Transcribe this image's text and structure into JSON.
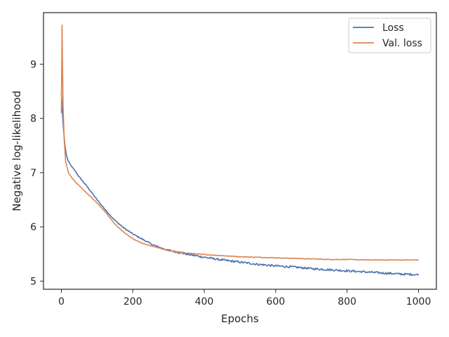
{
  "chart_data": {
    "type": "line",
    "xlabel": "Epochs",
    "ylabel": "Negative log-likelihood",
    "xlim": [
      -50,
      1050
    ],
    "ylim": [
      4.85,
      9.95
    ],
    "xticks": [
      0,
      200,
      400,
      600,
      800,
      1000
    ],
    "yticks": [
      5,
      6,
      7,
      8,
      9
    ],
    "grid": false,
    "legend_position": "top-right",
    "series": [
      {
        "name": "Loss",
        "color": "#4c72b0",
        "noise": 0.012,
        "points": [
          [
            0,
            8.48
          ],
          [
            3,
            8.1
          ],
          [
            6,
            7.8
          ],
          [
            10,
            7.5
          ],
          [
            15,
            7.3
          ],
          [
            20,
            7.2
          ],
          [
            30,
            7.1
          ],
          [
            40,
            7.02
          ],
          [
            50,
            6.92
          ],
          [
            75,
            6.72
          ],
          [
            100,
            6.5
          ],
          [
            125,
            6.3
          ],
          [
            150,
            6.12
          ],
          [
            175,
            5.98
          ],
          [
            200,
            5.87
          ],
          [
            225,
            5.78
          ],
          [
            250,
            5.69
          ],
          [
            275,
            5.62
          ],
          [
            300,
            5.57
          ],
          [
            350,
            5.5
          ],
          [
            400,
            5.44
          ],
          [
            450,
            5.39
          ],
          [
            500,
            5.35
          ],
          [
            550,
            5.31
          ],
          [
            600,
            5.28
          ],
          [
            650,
            5.26
          ],
          [
            700,
            5.23
          ],
          [
            750,
            5.21
          ],
          [
            800,
            5.19
          ],
          [
            850,
            5.17
          ],
          [
            900,
            5.15
          ],
          [
            950,
            5.13
          ],
          [
            1000,
            5.12
          ]
        ]
      },
      {
        "name": "Val. loss",
        "color": "#dd8452",
        "noise": 0.004,
        "points": [
          [
            0,
            8.1
          ],
          [
            2,
            9.72
          ],
          [
            3,
            9.1
          ],
          [
            5,
            8.2
          ],
          [
            8,
            7.6
          ],
          [
            12,
            7.2
          ],
          [
            20,
            7.0
          ],
          [
            30,
            6.9
          ],
          [
            40,
            6.82
          ],
          [
            50,
            6.76
          ],
          [
            75,
            6.6
          ],
          [
            100,
            6.44
          ],
          [
            125,
            6.26
          ],
          [
            150,
            6.05
          ],
          [
            175,
            5.9
          ],
          [
            200,
            5.78
          ],
          [
            225,
            5.7
          ],
          [
            250,
            5.65
          ],
          [
            275,
            5.61
          ],
          [
            300,
            5.56
          ],
          [
            350,
            5.52
          ],
          [
            400,
            5.49
          ],
          [
            450,
            5.47
          ],
          [
            500,
            5.45
          ],
          [
            550,
            5.44
          ],
          [
            600,
            5.43
          ],
          [
            650,
            5.42
          ],
          [
            700,
            5.41
          ],
          [
            750,
            5.4
          ],
          [
            800,
            5.4
          ],
          [
            850,
            5.39
          ],
          [
            900,
            5.39
          ],
          [
            950,
            5.39
          ],
          [
            1000,
            5.39
          ]
        ]
      }
    ]
  }
}
